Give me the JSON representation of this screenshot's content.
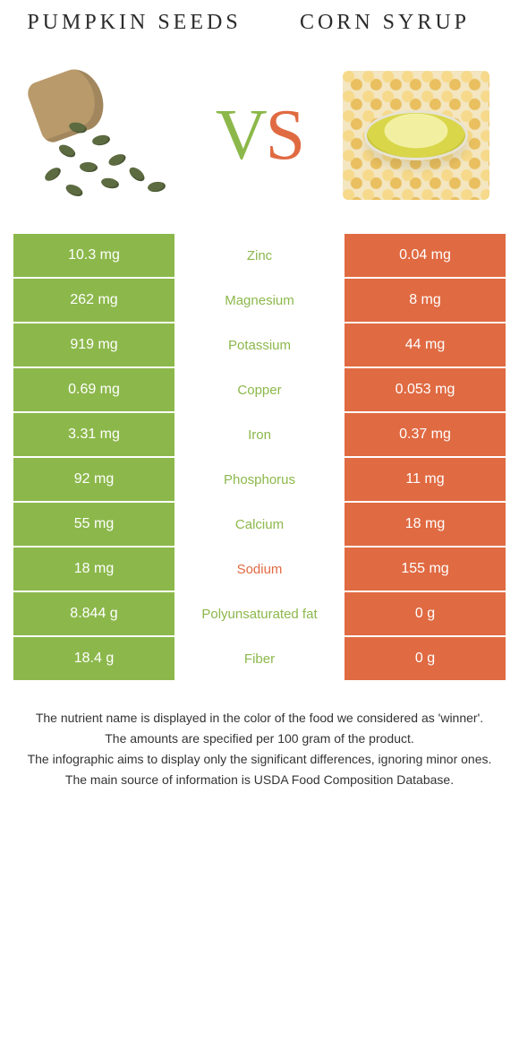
{
  "colors": {
    "left": "#8cb84b",
    "right": "#e06a42",
    "row_gap": "#ffffff",
    "text_light": "#ffffff"
  },
  "header": {
    "left_title": "Pumpkin seeds",
    "right_title": "Corn syrup",
    "vs_v": "V",
    "vs_s": "S"
  },
  "rows": [
    {
      "left": "10.3 mg",
      "label": "Zinc",
      "right": "0.04 mg",
      "winner": "left"
    },
    {
      "left": "262 mg",
      "label": "Magnesium",
      "right": "8 mg",
      "winner": "left"
    },
    {
      "left": "919 mg",
      "label": "Potassium",
      "right": "44 mg",
      "winner": "left"
    },
    {
      "left": "0.69 mg",
      "label": "Copper",
      "right": "0.053 mg",
      "winner": "left"
    },
    {
      "left": "3.31 mg",
      "label": "Iron",
      "right": "0.37 mg",
      "winner": "left"
    },
    {
      "left": "92 mg",
      "label": "Phosphorus",
      "right": "11 mg",
      "winner": "left"
    },
    {
      "left": "55 mg",
      "label": "Calcium",
      "right": "18 mg",
      "winner": "left"
    },
    {
      "left": "18 mg",
      "label": "Sodium",
      "right": "155 mg",
      "winner": "right"
    },
    {
      "left": "8.844 g",
      "label": "Polyunsaturated fat",
      "right": "0 g",
      "winner": "left"
    },
    {
      "left": "18.4 g",
      "label": "Fiber",
      "right": "0 g",
      "winner": "left"
    }
  ],
  "footer": {
    "line1": "The nutrient name is displayed in the color of the food we considered as 'winner'.",
    "line2": "The amounts are specified per 100 gram of the product.",
    "line3": "The infographic aims to display only the significant differences, ignoring minor ones.",
    "line4": "The main source of information is USDA Food Composition Database."
  }
}
